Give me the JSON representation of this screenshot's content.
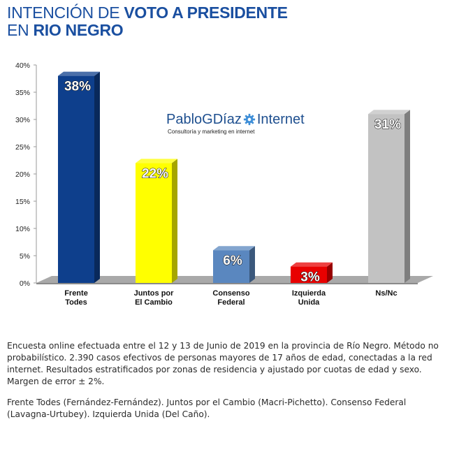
{
  "header": {
    "title_line1_light": "INTENCIÓN DE",
    "title_line1_bold": "VOTO A PRESIDENTE",
    "title_line2_light": "EN",
    "title_line2_bold": "RIO NEGRO"
  },
  "watermark": {
    "brand_left": "PabloGDíaz",
    "brand_right": "Internet",
    "tagline": "Consultoría y marketing en internet",
    "icon": "gear-icon"
  },
  "chart_data": {
    "type": "bar",
    "categories": [
      "Frente\nTodes",
      "Juntos por\nEl Cambio",
      "Consenso\nFederal",
      "Izquierda\nUnida",
      "Ns/Nc"
    ],
    "values": [
      38,
      22,
      6,
      3,
      31
    ],
    "data_labels": [
      "38%",
      "22%",
      "6%",
      "3%",
      "31%"
    ],
    "colors": [
      "#0e3f8c",
      "#ffff00",
      "#5a87bf",
      "#e80000",
      "#c2c2c2"
    ],
    "ylim": [
      0,
      40
    ],
    "yticks": [
      "0%",
      "5%",
      "10%",
      "15%",
      "20%",
      "25%",
      "30%",
      "35%",
      "40%"
    ],
    "tick_values": [
      0,
      5,
      10,
      15,
      20,
      25,
      30,
      35,
      40
    ],
    "grid": false,
    "legend": "none"
  },
  "notes": {
    "p1": "Encuesta online efectuada entre el 12 y 13 de Junio de 2019 en la provincia de Río Negro. Método no probabilístico. 2.390 casos efectivos de personas mayores de 17 años de edad, conectadas a la red internet. Resultados estratificados por zonas de residencia y ajustado por cuotas de edad y sexo. Margen de error ± 2%.",
    "p2": "Frente Todes (Fernández-Fernández). Juntos por el Cambio (Macri-Pichetto). Consenso Federal (Lavagna-Urtubey). Izquierda Unida (Del Caño)."
  }
}
